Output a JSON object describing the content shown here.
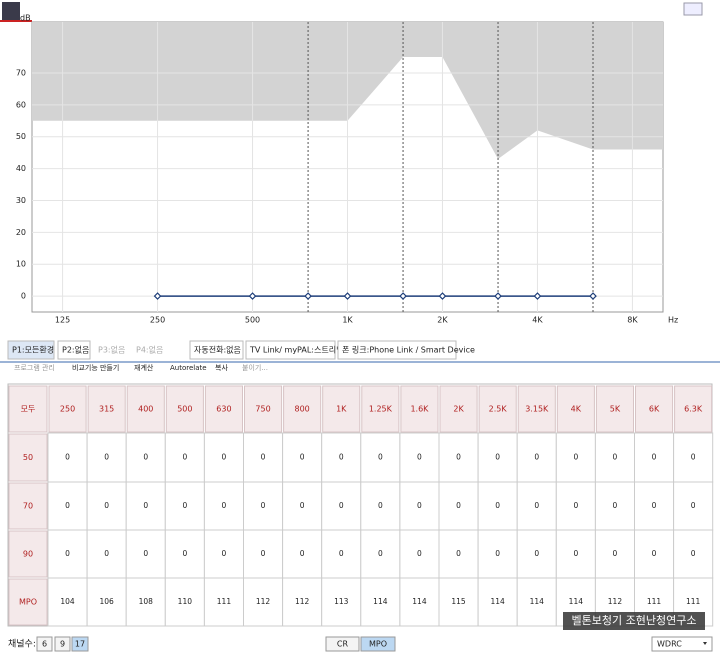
{
  "chart_data": {
    "type": "line",
    "y_label": "dB",
    "x_label": "Hz",
    "log_x": true,
    "xlim": [
      100,
      10000
    ],
    "ylim": [
      -5,
      86
    ],
    "xticks": [
      125,
      250,
      500,
      {
        "value": 1000,
        "label": "1K"
      },
      {
        "value": 2000,
        "label": "2K"
      },
      {
        "value": 4000,
        "label": "4K"
      },
      {
        "value": 8000,
        "label": "8K"
      }
    ],
    "yticks": [
      0,
      10,
      20,
      30,
      40,
      50,
      60,
      70
    ],
    "grid": true,
    "dashed_x": [
      750,
      1500,
      3000,
      6000
    ],
    "limit_area": {
      "color": "#d3d3d3",
      "x": [
        100,
        1000,
        1500,
        2000,
        3000,
        4000,
        6000,
        10000
      ],
      "values": [
        55,
        55,
        75,
        75,
        43,
        52,
        46,
        46
      ]
    },
    "series": [
      {
        "color": "#1f3f7a",
        "x": [
          250,
          500,
          750,
          1000,
          1500,
          2000,
          3000,
          4000,
          6000
        ],
        "values": [
          0,
          0,
          0,
          0,
          0,
          0,
          0,
          0,
          0
        ]
      }
    ]
  },
  "tabs": [
    "P1:모든환경",
    "P2:없음",
    "P3:없음",
    "P4:없음",
    "자동전화:없음",
    "TV Link/ myPAL:스트리밍",
    "폰 링크:Phone Link / Smart Device"
  ],
  "toolbar": [
    "프로그램 관리",
    "비교기능 만들기",
    "재계산",
    "Autorelate",
    "복사",
    "붙이기..."
  ],
  "table": {
    "header": [
      "모두",
      "250",
      "315",
      "400",
      "500",
      "630",
      "750",
      "800",
      "1K",
      "1.25K",
      "1.6K",
      "2K",
      "2.5K",
      "3.15K",
      "4K",
      "5K",
      "6K",
      "6.3K"
    ],
    "rows": [
      [
        "50",
        0,
        0,
        0,
        0,
        0,
        0,
        0,
        0,
        0,
        0,
        0,
        0,
        0,
        0,
        0,
        0,
        0
      ],
      [
        "70",
        0,
        0,
        0,
        0,
        0,
        0,
        0,
        0,
        0,
        0,
        0,
        0,
        0,
        0,
        0,
        0,
        0
      ],
      [
        "90",
        0,
        0,
        0,
        0,
        0,
        0,
        0,
        0,
        0,
        0,
        0,
        0,
        0,
        0,
        0,
        0,
        0
      ],
      [
        "MPO",
        104,
        106,
        108,
        110,
        111,
        112,
        112,
        113,
        114,
        114,
        115,
        114,
        114,
        114,
        112,
        111,
        111
      ]
    ]
  },
  "footer": {
    "channels_label": "채널수:",
    "channels": [
      "6",
      "9",
      "17"
    ],
    "modes": [
      "CR",
      "MPO"
    ],
    "select": "WDRC",
    "watermark": "벨톤보청기 조현난청연구소"
  }
}
